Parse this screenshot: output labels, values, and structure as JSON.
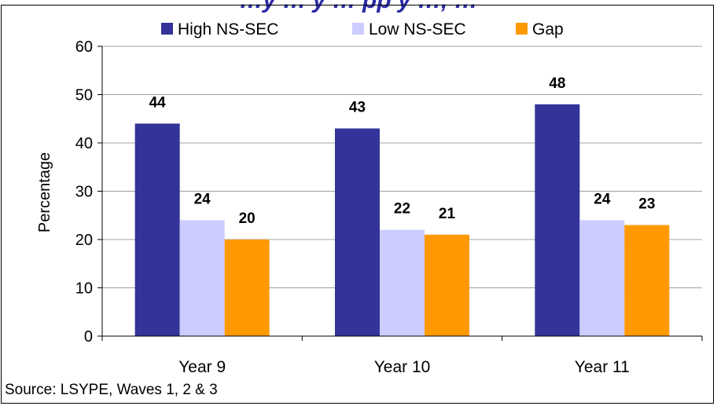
{
  "title": "…y … y … pp y …, …",
  "source": "Source: LSYPE, Waves 1, 2 & 3",
  "colors": {
    "high": "#333399",
    "low": "#ccccff",
    "gap": "#ff9900"
  },
  "chart_data": {
    "type": "bar",
    "categories": [
      "Year 9",
      "Year 10",
      "Year 11"
    ],
    "series": [
      {
        "name": "High NS-SEC",
        "values": [
          44,
          43,
          48
        ]
      },
      {
        "name": "Low NS-SEC",
        "values": [
          24,
          22,
          24
        ]
      },
      {
        "name": "Gap",
        "values": [
          20,
          21,
          23
        ]
      }
    ],
    "data_labels": [
      [
        "44",
        "43",
        "48"
      ],
      [
        "24",
        "22",
        "24"
      ],
      [
        "20",
        "21",
        "23"
      ]
    ],
    "ylabel": "Percentage",
    "xlabel": "",
    "ylim": [
      0,
      60
    ],
    "yticks": [
      0,
      10,
      20,
      30,
      40,
      50,
      60
    ],
    "grid": true,
    "legend": "top"
  }
}
